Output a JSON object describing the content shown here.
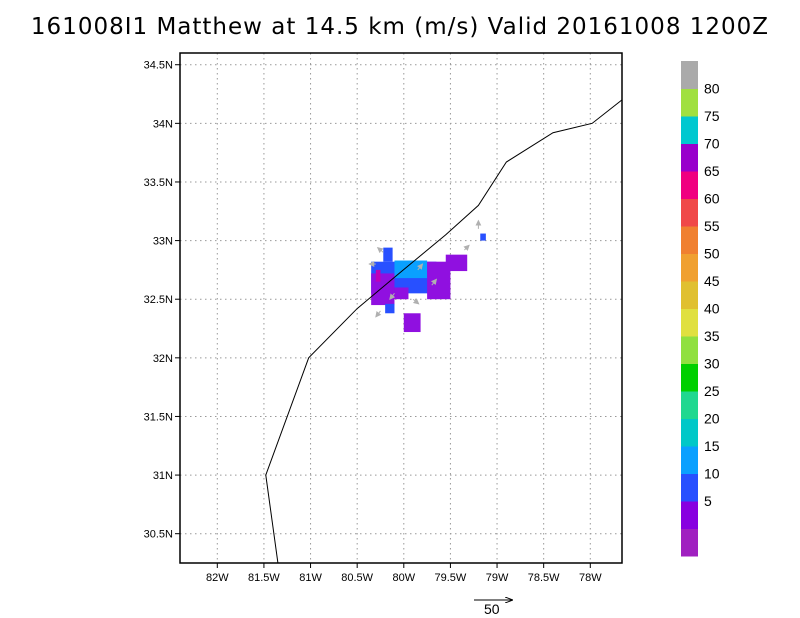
{
  "title": "161008I1 Matthew at 14.5 km (m/s) Valid 20161008 1200Z",
  "map": {
    "lon_range": [
      -82.4,
      -77.66
    ],
    "lat_range": [
      30.25,
      34.6
    ],
    "lon_ticks": [
      {
        "value": -82.0,
        "label": "82W"
      },
      {
        "value": -81.5,
        "label": "81.5W"
      },
      {
        "value": -81.0,
        "label": "81W"
      },
      {
        "value": -80.5,
        "label": "80.5W"
      },
      {
        "value": -80.0,
        "label": "80W"
      },
      {
        "value": -79.5,
        "label": "79.5W"
      },
      {
        "value": -79.0,
        "label": "79W"
      },
      {
        "value": -78.5,
        "label": "78.5W"
      },
      {
        "value": -78.0,
        "label": "78W"
      }
    ],
    "lat_ticks": [
      {
        "value": 30.5,
        "label": "30.5N"
      },
      {
        "value": 31.0,
        "label": "31N"
      },
      {
        "value": 31.5,
        "label": "31.5N"
      },
      {
        "value": 32.0,
        "label": "32N"
      },
      {
        "value": 32.5,
        "label": "32.5N"
      },
      {
        "value": 33.0,
        "label": "33N"
      },
      {
        "value": 33.5,
        "label": "33.5N"
      },
      {
        "value": 34.0,
        "label": "34N"
      },
      {
        "value": 34.5,
        "label": "34.5N"
      }
    ],
    "gridlines": true,
    "coastline": [
      [
        -81.35,
        30.25
      ],
      [
        -81.48,
        31.0
      ],
      [
        -81.02,
        32.0
      ],
      [
        -80.5,
        32.42
      ],
      [
        -80.05,
        32.72
      ],
      [
        -79.55,
        33.05
      ],
      [
        -79.2,
        33.3
      ],
      [
        -78.9,
        33.67
      ],
      [
        -78.4,
        33.92
      ],
      [
        -77.98,
        34.0
      ],
      [
        -77.66,
        34.2
      ]
    ],
    "wind_cells": [
      {
        "lon": [
          -80.35,
          -79.65
        ],
        "lat": [
          32.55,
          32.82
        ],
        "color": "#2850ff"
      },
      {
        "lon": [
          -80.22,
          -80.12
        ],
        "lat": [
          32.82,
          32.94
        ],
        "color": "#2850ff"
      },
      {
        "lon": [
          -80.1,
          -79.75
        ],
        "lat": [
          32.68,
          32.83
        ],
        "color": "#0aa0ff"
      },
      {
        "lon": [
          -80.35,
          -80.1
        ],
        "lat": [
          32.45,
          32.72
        ],
        "color": "#9010e0"
      },
      {
        "lon": [
          -79.75,
          -79.5
        ],
        "lat": [
          32.5,
          32.82
        ],
        "color": "#9010e0"
      },
      {
        "lon": [
          -79.55,
          -79.32
        ],
        "lat": [
          32.74,
          32.88
        ],
        "color": "#9010e0"
      },
      {
        "lon": [
          -80.1,
          -79.95
        ],
        "lat": [
          32.5,
          32.6
        ],
        "color": "#9010e0"
      },
      {
        "lon": [
          -80.0,
          -79.82
        ],
        "lat": [
          32.22,
          32.38
        ],
        "color": "#9010e0"
      },
      {
        "lon": [
          -80.2,
          -80.1
        ],
        "lat": [
          32.38,
          32.46
        ],
        "color": "#2850ff"
      },
      {
        "lon": [
          -80.3,
          -80.25
        ],
        "lat": [
          32.65,
          32.75
        ],
        "color": "#c000b8"
      },
      {
        "lon": [
          -79.18,
          -79.12
        ],
        "lat": [
          33.0,
          33.06
        ],
        "color": "#2850ff"
      }
    ],
    "wind_arrows": [
      {
        "lon": -80.22,
        "lat": 32.9,
        "dx": -0.06,
        "dy": 0.04
      },
      {
        "lon": -80.3,
        "lat": 32.8,
        "dx": -0.07,
        "dy": 0.0
      },
      {
        "lon": -80.1,
        "lat": 32.55,
        "dx": -0.05,
        "dy": -0.05
      },
      {
        "lon": -79.85,
        "lat": 32.75,
        "dx": 0.05,
        "dy": 0.05
      },
      {
        "lon": -79.9,
        "lat": 32.5,
        "dx": 0.06,
        "dy": -0.04
      },
      {
        "lon": -79.7,
        "lat": 32.62,
        "dx": 0.05,
        "dy": 0.05
      },
      {
        "lon": -80.25,
        "lat": 32.4,
        "dx": -0.05,
        "dy": -0.05
      },
      {
        "lon": -79.35,
        "lat": 32.92,
        "dx": 0.05,
        "dy": 0.04
      },
      {
        "lon": -79.2,
        "lat": 33.1,
        "dx": 0.0,
        "dy": 0.07
      }
    ],
    "arrow_color": "#b0b0b0"
  },
  "colorbar": {
    "bins": [
      {
        "color": "#a020c0",
        "label": ""
      },
      {
        "color": "#8800e0",
        "label": "5"
      },
      {
        "color": "#2850ff",
        "label": "10"
      },
      {
        "color": "#0aa0ff",
        "label": "15"
      },
      {
        "color": "#00c8c8",
        "label": "20"
      },
      {
        "color": "#20d890",
        "label": "25"
      },
      {
        "color": "#00d000",
        "label": "30"
      },
      {
        "color": "#90e040",
        "label": "35"
      },
      {
        "color": "#e0e040",
        "label": "40"
      },
      {
        "color": "#e0c030",
        "label": "45"
      },
      {
        "color": "#f0a030",
        "label": "50"
      },
      {
        "color": "#f08030",
        "label": "55"
      },
      {
        "color": "#f04848",
        "label": "60"
      },
      {
        "color": "#f00080",
        "label": "65"
      },
      {
        "color": "#9900cc",
        "label": "70"
      },
      {
        "color": "#00c8d0",
        "label": "75"
      },
      {
        "color": "#a0e040",
        "label": "80"
      },
      {
        "color": "#aaaaaa",
        "label": ""
      }
    ]
  },
  "reference_vector": {
    "label": "50"
  }
}
